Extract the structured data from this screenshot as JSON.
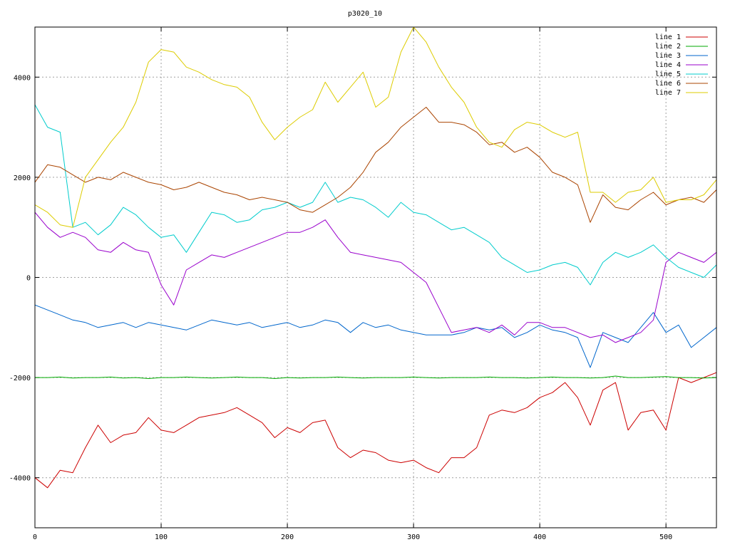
{
  "chart_data": {
    "type": "line",
    "title": "p3020_10",
    "xlabel": "",
    "ylabel": "",
    "xlim": [
      0,
      540
    ],
    "ylim": [
      -5000,
      5000
    ],
    "x_ticks": [
      0,
      100,
      200,
      300,
      400,
      500
    ],
    "y_ticks": [
      -4000,
      -2000,
      0,
      2000,
      4000
    ],
    "x_tick_labels": [
      "0",
      "100",
      "200",
      "300",
      "400",
      "500"
    ],
    "y_tick_labels": [
      "-4000",
      "-2000",
      "0",
      "2000",
      "4000"
    ],
    "grid": true,
    "legend_position": "top-right",
    "x": [
      0,
      10,
      20,
      30,
      40,
      50,
      60,
      70,
      80,
      90,
      100,
      110,
      120,
      130,
      140,
      150,
      160,
      170,
      180,
      190,
      200,
      210,
      220,
      230,
      240,
      250,
      260,
      270,
      280,
      290,
      300,
      310,
      320,
      330,
      340,
      350,
      360,
      370,
      380,
      390,
      400,
      410,
      420,
      430,
      440,
      450,
      460,
      470,
      480,
      490,
      500,
      510,
      520,
      530,
      540
    ],
    "series": [
      {
        "name": "line 1",
        "color": "#cc0000",
        "values": [
          -4000,
          -4200,
          -3850,
          -3900,
          -3400,
          -2950,
          -3300,
          -3150,
          -3100,
          -2800,
          -3050,
          -3100,
          -2950,
          -2800,
          -2750,
          -2700,
          -2600,
          -2750,
          -2900,
          -3200,
          -3000,
          -3100,
          -2900,
          -2850,
          -3400,
          -3600,
          -3450,
          -3500,
          -3650,
          -3700,
          -3650,
          -3800,
          -3900,
          -3600,
          -3600,
          -3400,
          -2750,
          -2650,
          -2700,
          -2600,
          -2400,
          -2300,
          -2100,
          -2400,
          -2950,
          -2250,
          -2100,
          -3050,
          -2700,
          -2650,
          -3050,
          -2000,
          -2100,
          -2000,
          -1900
        ]
      },
      {
        "name": "line 2",
        "color": "#00aa00",
        "values": [
          -2000,
          -2000,
          -1990,
          -2010,
          -2000,
          -2000,
          -1990,
          -2010,
          -2000,
          -2020,
          -2000,
          -2000,
          -1990,
          -2000,
          -2010,
          -2000,
          -1990,
          -2000,
          -2000,
          -2020,
          -2000,
          -2010,
          -2000,
          -2000,
          -1990,
          -2000,
          -2010,
          -2000,
          -2000,
          -2000,
          -1990,
          -2000,
          -2010,
          -2000,
          -2000,
          -2000,
          -1990,
          -2000,
          -2000,
          -2010,
          -2000,
          -1990,
          -2000,
          -2000,
          -2010,
          -2000,
          -1970,
          -2000,
          -2000,
          -1990,
          -1980,
          -2000,
          -2000,
          -2010,
          -2000
        ]
      },
      {
        "name": "line 3",
        "color": "#0066cc",
        "values": [
          -550,
          -650,
          -750,
          -850,
          -900,
          -1000,
          -950,
          -900,
          -1000,
          -900,
          -950,
          -1000,
          -1050,
          -950,
          -850,
          -900,
          -950,
          -900,
          -1000,
          -950,
          -900,
          -1000,
          -950,
          -850,
          -900,
          -1100,
          -900,
          -1000,
          -950,
          -1050,
          -1100,
          -1150,
          -1150,
          -1150,
          -1100,
          -1000,
          -1050,
          -1000,
          -1200,
          -1100,
          -950,
          -1050,
          -1100,
          -1200,
          -1800,
          -1100,
          -1200,
          -1300,
          -1000,
          -700,
          -1100,
          -950,
          -1400,
          -1200,
          -1000
        ]
      },
      {
        "name": "line 4",
        "color": "#9900cc",
        "values": [
          1300,
          1000,
          800,
          900,
          800,
          550,
          500,
          700,
          550,
          500,
          -150,
          -550,
          150,
          300,
          450,
          400,
          500,
          600,
          700,
          800,
          900,
          900,
          1000,
          1150,
          800,
          500,
          450,
          400,
          350,
          300,
          100,
          -100,
          -600,
          -1100,
          -1050,
          -1000,
          -1100,
          -950,
          -1150,
          -900,
          -900,
          -1000,
          -1000,
          -1100,
          -1200,
          -1150,
          -1300,
          -1200,
          -1100,
          -850,
          300,
          500,
          400,
          300,
          500
        ]
      },
      {
        "name": "line 5",
        "color": "#00cccc",
        "values": [
          3450,
          3000,
          2900,
          1000,
          1100,
          850,
          1050,
          1400,
          1250,
          1000,
          800,
          850,
          500,
          900,
          1300,
          1250,
          1100,
          1150,
          1350,
          1400,
          1500,
          1400,
          1500,
          1900,
          1500,
          1600,
          1550,
          1400,
          1200,
          1500,
          1300,
          1250,
          1100,
          950,
          1000,
          850,
          700,
          400,
          250,
          100,
          150,
          250,
          300,
          200,
          -150,
          300,
          500,
          400,
          500,
          650,
          400,
          200,
          100,
          0,
          250
        ]
      },
      {
        "name": "line 6",
        "color": "#aa4400",
        "values": [
          1900,
          2250,
          2200,
          2050,
          1900,
          2000,
          1950,
          2100,
          2000,
          1900,
          1850,
          1750,
          1800,
          1900,
          1800,
          1700,
          1650,
          1550,
          1600,
          1550,
          1500,
          1350,
          1300,
          1450,
          1600,
          1800,
          2100,
          2500,
          2700,
          3000,
          3200,
          3400,
          3100,
          3100,
          3050,
          2900,
          2650,
          2700,
          2500,
          2600,
          2400,
          2100,
          2000,
          1850,
          1100,
          1650,
          1400,
          1350,
          1550,
          1700,
          1450,
          1550,
          1600,
          1500,
          1750
        ]
      },
      {
        "name": "line 7",
        "color": "#ddcc00",
        "values": [
          1450,
          1300,
          1050,
          1000,
          2000,
          2350,
          2700,
          3000,
          3500,
          4300,
          4550,
          4500,
          4200,
          4100,
          3950,
          3850,
          3800,
          3600,
          3100,
          2750,
          3000,
          3200,
          3350,
          3900,
          3500,
          3800,
          4100,
          3400,
          3600,
          4500,
          5000,
          4700,
          4200,
          3800,
          3500,
          3000,
          2700,
          2600,
          2950,
          3100,
          3050,
          2900,
          2800,
          2900,
          1700,
          1700,
          1500,
          1700,
          1750,
          2000,
          1500,
          1550,
          1550,
          1650,
          1950
        ]
      }
    ]
  }
}
